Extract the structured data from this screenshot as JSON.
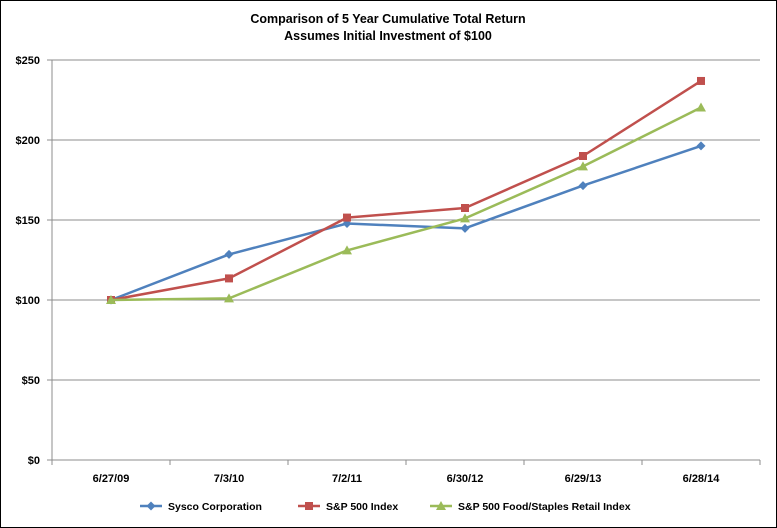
{
  "chart_data": {
    "type": "line",
    "title": "Comparison of 5 Year Cumulative  Total Return",
    "subtitle": "Assumes Initial  Investment of $100",
    "xlabel": "",
    "ylabel": "",
    "categories": [
      "6/27/09",
      "7/3/10",
      "7/2/11",
      "6/30/12",
      "6/29/13",
      "6/28/14"
    ],
    "ylim": [
      0,
      250
    ],
    "yticks": [
      0,
      50,
      100,
      150,
      200,
      250
    ],
    "ytick_labels": [
      "$0",
      "$50",
      "$100",
      "$150",
      "$200",
      "$250"
    ],
    "grid": true,
    "legend_position": "bottom",
    "series": [
      {
        "name": "Sysco Corporation",
        "color": "#4F81BD",
        "marker": "diamond",
        "values": [
          100,
          128.5,
          147.8,
          144.8,
          171.5,
          196.3
        ]
      },
      {
        "name": "S&P 500 Index",
        "color": "#C0504D",
        "marker": "square",
        "values": [
          100,
          113.5,
          151.5,
          157.5,
          190,
          236.9
        ]
      },
      {
        "name": "S&P 500 Food/Staples Retail Index",
        "color": "#9BBB59",
        "marker": "triangle",
        "values": [
          100,
          101,
          131,
          151,
          183.5,
          220.3
        ]
      }
    ]
  }
}
